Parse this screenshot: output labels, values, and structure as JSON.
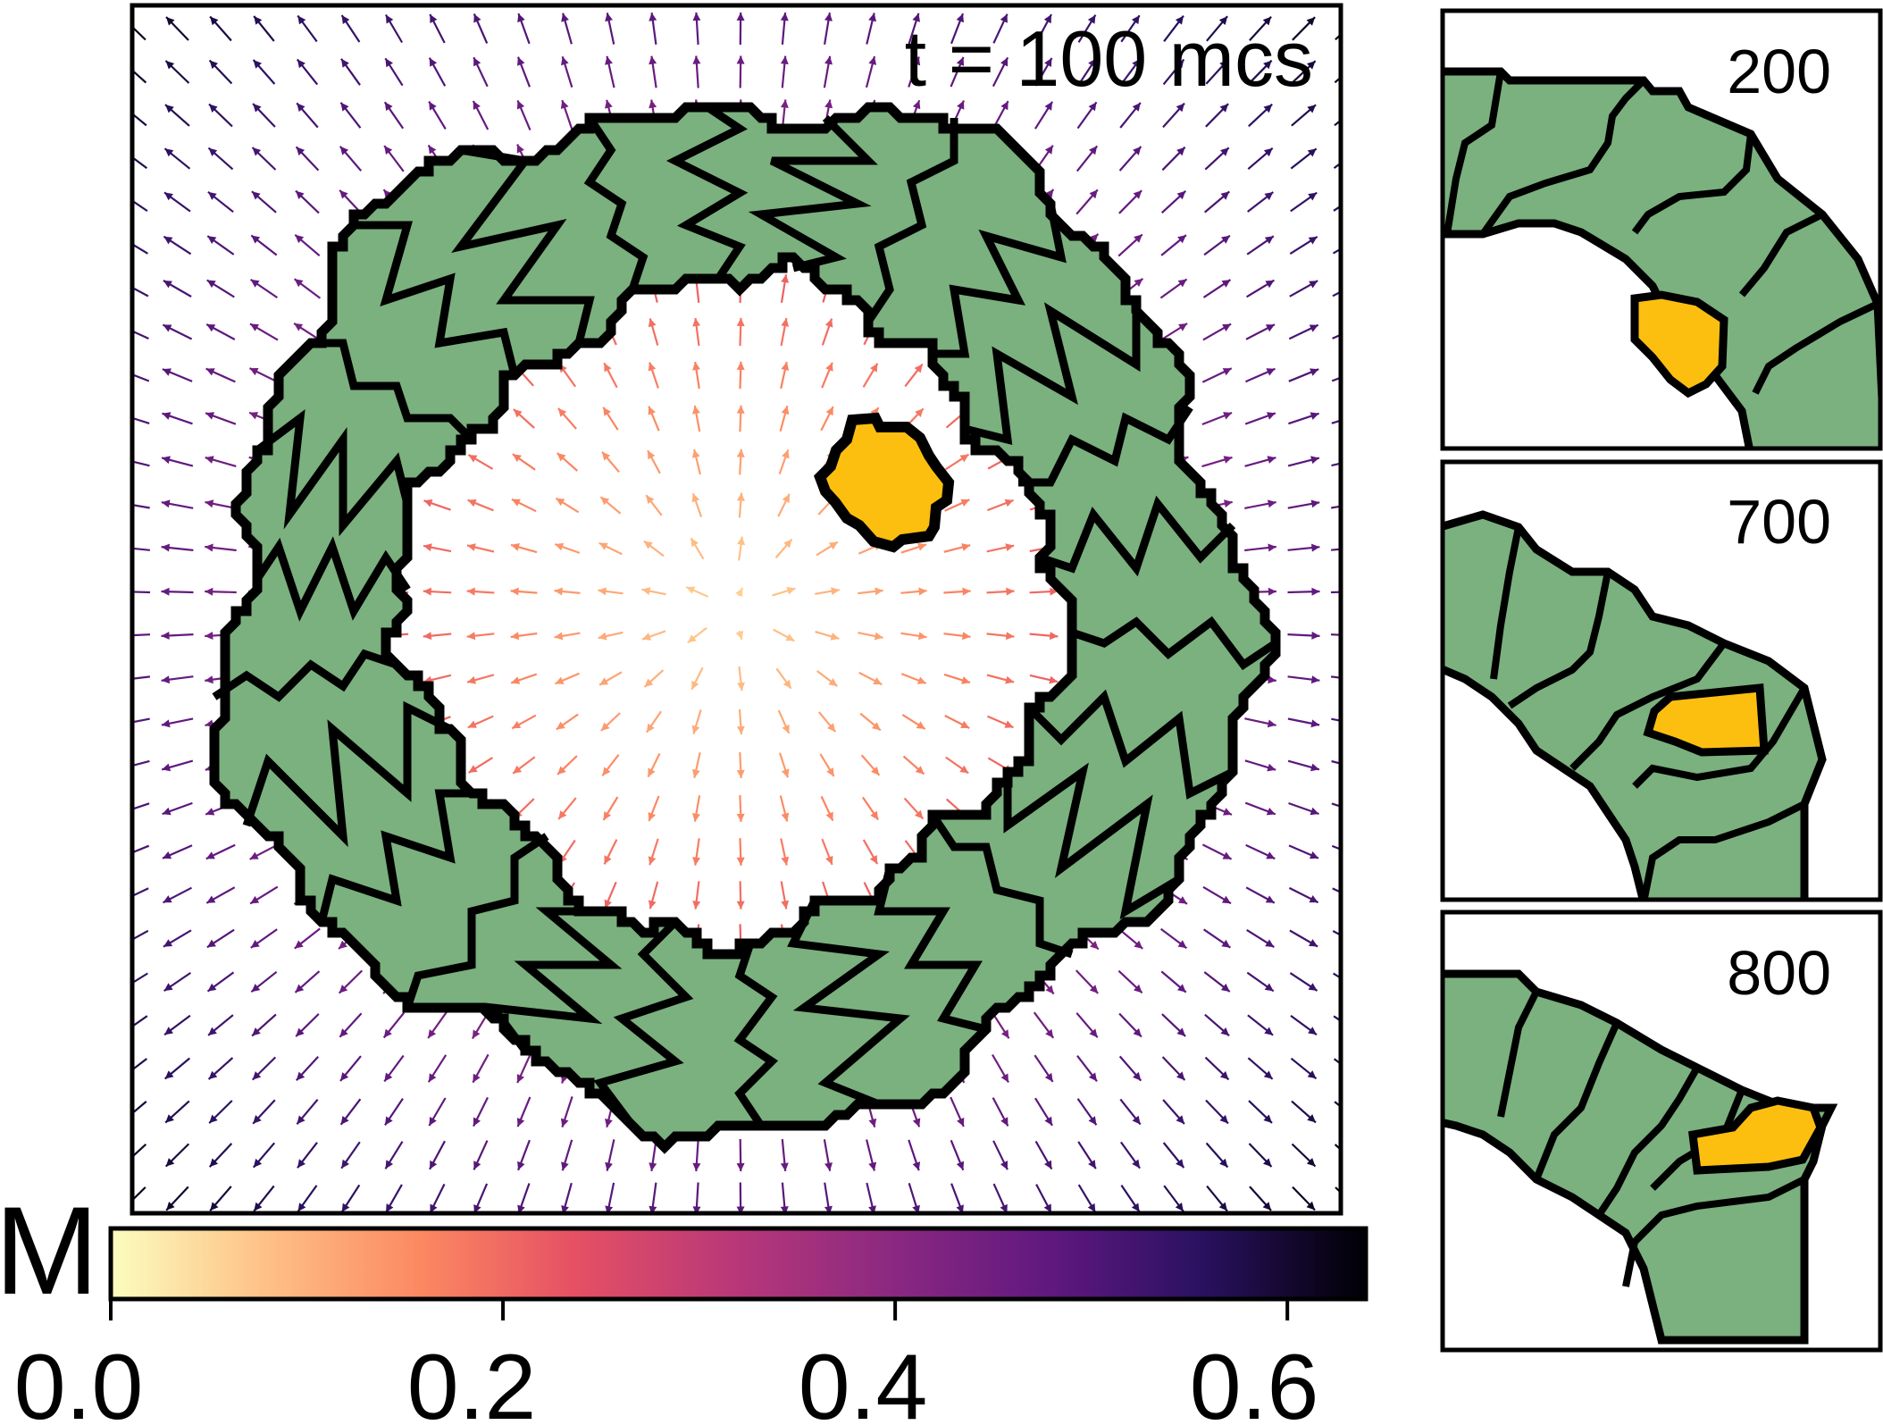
{
  "main_panel": {
    "time_label": "t = 100 mcs"
  },
  "colorbar": {
    "label": "M",
    "ticks": [
      "0.0",
      "0.2",
      "0.4",
      "0.6"
    ],
    "tick_values": [
      0.0,
      0.2,
      0.4,
      0.6
    ],
    "range": [
      0.0,
      0.64
    ],
    "colormap": "magma (reversed)"
  },
  "inset_panels": [
    {
      "time_label": "200"
    },
    {
      "time_label": "700"
    },
    {
      "time_label": "800"
    }
  ],
  "colors": {
    "tissue_cell": "#7bb07f",
    "highlighted_cell": "#fcbf0f",
    "cell_border": "#000000",
    "background": "#ffffff"
  }
}
